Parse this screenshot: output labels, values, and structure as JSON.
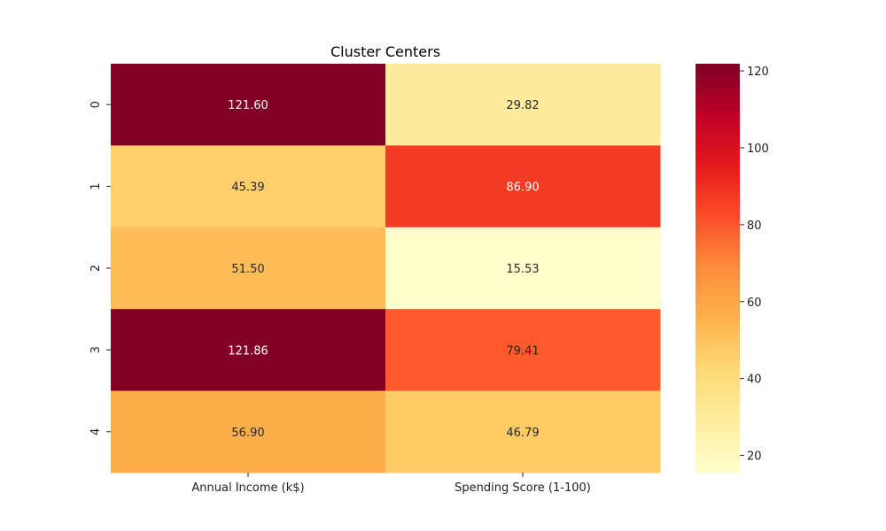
{
  "chart_data": {
    "type": "heatmap",
    "title": "Cluster Centers",
    "x_categories": [
      "Annual Income (k$)",
      "Spending Score (1-100)"
    ],
    "y_categories": [
      "0",
      "1",
      "2",
      "3",
      "4"
    ],
    "values": [
      [
        121.6,
        29.82
      ],
      [
        45.39,
        86.9
      ],
      [
        51.5,
        15.53
      ],
      [
        121.86,
        79.41
      ],
      [
        56.9,
        46.79
      ]
    ],
    "value_labels": [
      [
        "121.60",
        "29.82"
      ],
      [
        "45.39",
        "86.90"
      ],
      [
        "51.50",
        "15.53"
      ],
      [
        "121.86",
        "79.41"
      ],
      [
        "56.90",
        "46.79"
      ]
    ],
    "colormap": "YlOrRd",
    "colorbar": {
      "range": [
        15.53,
        121.86
      ],
      "ticks": [
        20,
        40,
        60,
        80,
        100,
        120
      ],
      "tick_labels": [
        "20",
        "40",
        "60",
        "80",
        "100",
        "120"
      ]
    },
    "grid": false,
    "legend": "colorbar-right"
  }
}
